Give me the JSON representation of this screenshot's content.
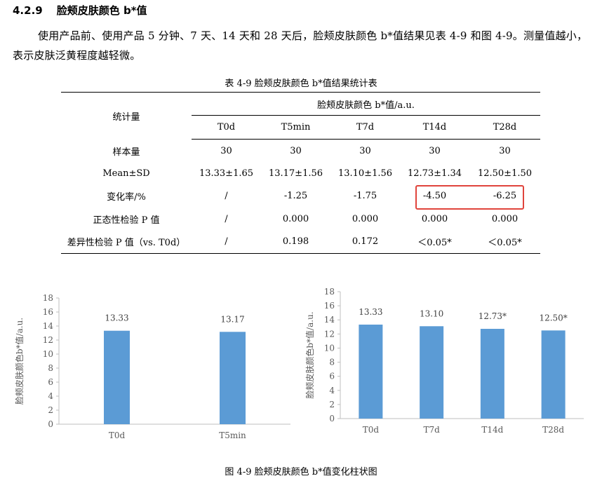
{
  "section": {
    "number": "4.2.9",
    "title": "脸颊皮肤颜色 b*值"
  },
  "paragraph": "使用产品前、使用产品 5 分钟、7 天、14 天和 28 天后，脸颊皮肤颜色 b*值结果见表 4-9 和图 4-9。测量值越小，表示皮肤泛黄程度越轻微。",
  "table": {
    "caption": "表 4-9  脸颊皮肤颜色 b*值结果统计表",
    "row_header": "统计量",
    "group_header": "脸颊皮肤颜色 b*值/a.u.",
    "columns": [
      "T0d",
      "T5min",
      "T7d",
      "T14d",
      "T28d"
    ],
    "rows": [
      {
        "label": "样本量",
        "values": [
          "30",
          "30",
          "30",
          "30",
          "30"
        ]
      },
      {
        "label": "Mean±SD",
        "values": [
          "13.33±1.65",
          "13.17±1.56",
          "13.10±1.56",
          "12.73±1.34",
          "12.50±1.50"
        ]
      },
      {
        "label": "变化率/%",
        "values": [
          "/",
          "-1.25",
          "-1.75",
          "-4.50",
          "-6.25"
        ]
      },
      {
        "label": "正态性检验 P 值",
        "values": [
          "/",
          "0.000",
          "0.000",
          "0.000",
          "0.000"
        ]
      },
      {
        "label": "差异性检验 P 值（vs. T0d）",
        "values": [
          "/",
          "0.198",
          "0.172",
          "＜0.05*",
          "＜0.05*"
        ]
      }
    ],
    "highlight_color": "#e0443c"
  },
  "chart_data": [
    {
      "type": "bar",
      "categories": [
        "T0d",
        "T5min"
      ],
      "values": [
        13.33,
        13.17
      ],
      "data_labels": [
        "13.33",
        "13.17"
      ],
      "ylabel": "脸颊皮肤颜色b*值/a.u.",
      "yticks": [
        "0",
        "2",
        "4",
        "6",
        "8",
        "10",
        "12",
        "14",
        "16",
        "18"
      ],
      "ylim": [
        0,
        18
      ],
      "bar_color": "#5b9bd5"
    },
    {
      "type": "bar",
      "categories": [
        "T0d",
        "T7d",
        "T14d",
        "T28d"
      ],
      "values": [
        13.33,
        13.1,
        12.73,
        12.5
      ],
      "data_labels": [
        "13.33",
        "13.10",
        "12.73*",
        "12.50*"
      ],
      "ylabel": "脸颊皮肤颜色b*值/a.u.",
      "yticks": [
        "0",
        "2",
        "4",
        "6",
        "8",
        "10",
        "12",
        "14",
        "16",
        "18"
      ],
      "ylim": [
        0,
        18
      ],
      "bar_color": "#5b9bd5"
    }
  ],
  "figure_caption": "图 4-9  脸颊皮肤颜色 b*值变化柱状图"
}
